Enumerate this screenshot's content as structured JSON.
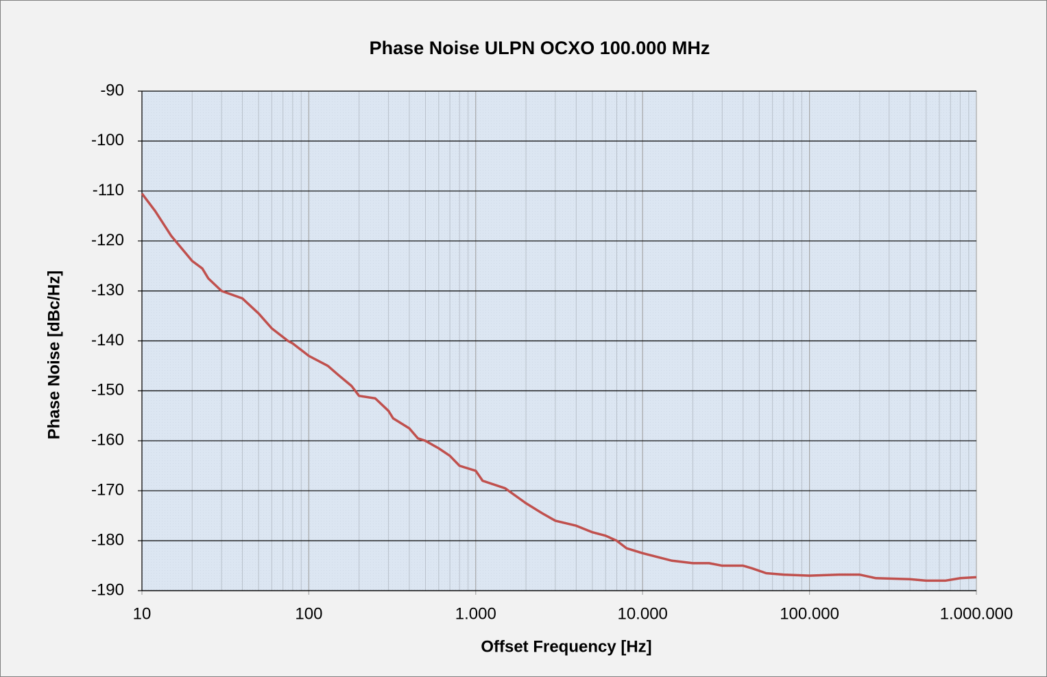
{
  "chart_data": {
    "type": "line",
    "title": "Phase Noise ULPN OCXO 100.000 MHz",
    "x_label": "Offset Frequency [Hz]",
    "y_label": "Phase Noise [dBc/Hz]",
    "x_scale": "log",
    "minor_grid": true,
    "grid": true,
    "xlim": [
      10,
      1000000
    ],
    "xticks": [
      10,
      100,
      {
        "value": 1000,
        "label": "1.000"
      },
      {
        "value": 10000,
        "label": "10.000"
      },
      {
        "value": 100000,
        "label": "100.000"
      },
      {
        "value": 1000000,
        "label": "1.000.000"
      }
    ],
    "ylim": [
      -190,
      -90
    ],
    "yticks": [
      -90,
      -100,
      -110,
      -120,
      -130,
      -140,
      -150,
      -160,
      -170,
      -180,
      -190
    ],
    "x": [
      10,
      12,
      15,
      20,
      23,
      25,
      30,
      40,
      50,
      60,
      75,
      80,
      100,
      130,
      150,
      180,
      200,
      250,
      300,
      320,
      400,
      450,
      500,
      600,
      700,
      800,
      1000,
      1100,
      1500,
      2000,
      2500,
      3000,
      4000,
      5000,
      6000,
      7000,
      8000,
      10000,
      15000,
      20000,
      25000,
      30000,
      40000,
      45000,
      55000,
      70000,
      100000,
      150000,
      200000,
      250000,
      400000,
      500000,
      650000,
      800000,
      1000000
    ],
    "series": [
      {
        "color": "#c0504d",
        "values": [
          -110.5,
          -114,
          -119,
          -124,
          -125.5,
          -127.5,
          -130,
          -131.5,
          -134.5,
          -137.5,
          -140,
          -140.5,
          -143,
          -145,
          -146.8,
          -149,
          -151,
          -151.5,
          -154,
          -155.5,
          -157.5,
          -159.5,
          -160,
          -161.5,
          -163,
          -165,
          -166,
          -168,
          -169.5,
          -172.5,
          -174.5,
          -176,
          -177,
          -178.3,
          -179,
          -180,
          -181.5,
          -182.5,
          -184,
          -184.5,
          -184.5,
          -185,
          -185,
          -185.5,
          -186.5,
          -186.8,
          -187,
          -186.8,
          -186.8,
          -187.5,
          -187.7,
          -188,
          -188,
          -187.5,
          -187.3
        ]
      }
    ]
  }
}
